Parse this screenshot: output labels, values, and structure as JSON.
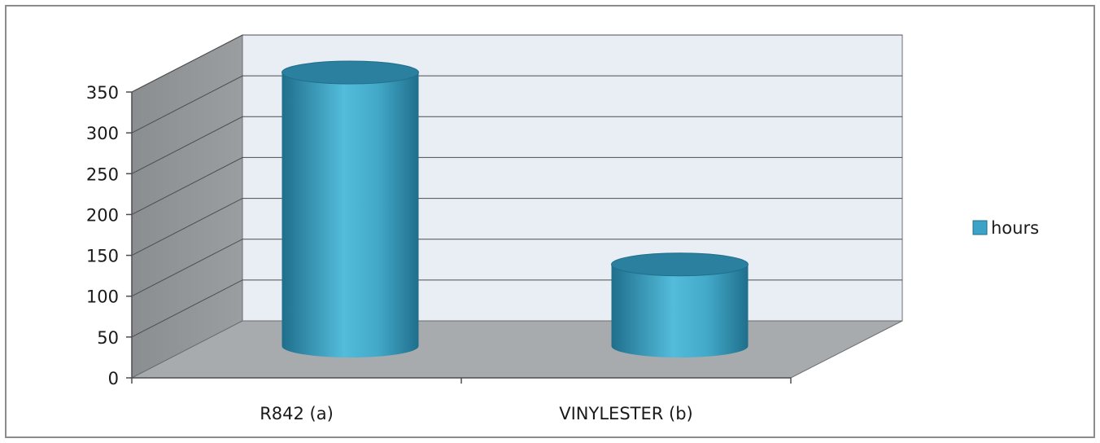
{
  "chart_data": {
    "type": "bar",
    "style": "3d-cylinder",
    "categories": [
      "R842 (a)",
      "VINYLESTER (b)"
    ],
    "series": [
      {
        "name": "hours",
        "values": [
          335,
          100
        ]
      }
    ],
    "yticks": [
      "0",
      "50",
      "100",
      "150",
      "200",
      "250",
      "300",
      "350"
    ],
    "ylim": [
      0,
      350
    ],
    "grid": true,
    "legend_position": "right",
    "colors": {
      "cylinder_light": "#4fb8d8",
      "cylinder_dark": "#1f6f8c",
      "cylinder_top": "#2a7f9c",
      "back_wall": "#e8eef4",
      "side_wall": "#8f9396",
      "floor": "#a7abae",
      "gridline": "#4d4d4d"
    }
  }
}
